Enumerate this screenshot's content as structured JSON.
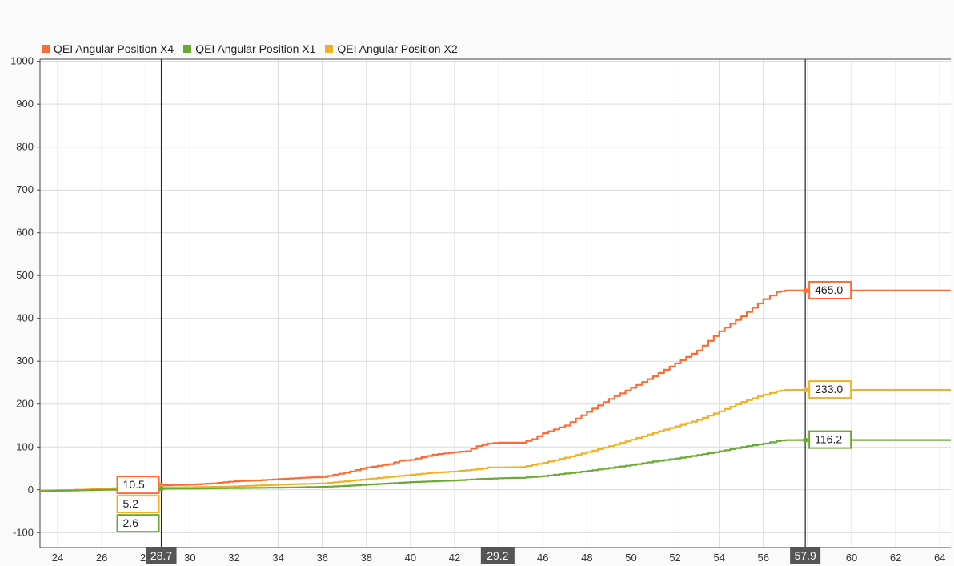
{
  "colors": {
    "x4": "#ff6a33",
    "x1": "#6aaa32",
    "x2": "#f2b125",
    "grid": "#d9d9d9",
    "cursor": "#222222",
    "cursor_label_bg": "#555555"
  },
  "legend": [
    {
      "name": "QEI Angular Position X4",
      "color": "#ff6a33"
    },
    {
      "name": "QEI Angular Position X1",
      "color": "#6aaa32"
    },
    {
      "name": "QEI Angular Position X2",
      "color": "#f2b125"
    }
  ],
  "cursors": [
    {
      "x": 28.7,
      "label": "28.7",
      "values": {
        "x4": "10.5",
        "x2": "5.2",
        "x1": "2.6"
      }
    },
    {
      "x": 57.9,
      "label": "57.9",
      "values": {
        "x4": "465.0",
        "x2": "233.0",
        "x1": "116.2"
      }
    }
  ],
  "delta_label": "29.2",
  "chart_data": {
    "type": "line",
    "xlim": [
      23.2,
      64.5
    ],
    "ylim": [
      -135,
      1005
    ],
    "x_ticks": [
      24,
      26,
      28,
      30,
      32,
      34,
      36,
      38,
      40,
      42,
      44,
      46,
      48,
      50,
      52,
      54,
      56,
      58,
      60,
      62,
      64
    ],
    "y_ticks": [
      -100,
      0,
      100,
      200,
      300,
      400,
      500,
      600,
      700,
      800,
      900,
      1000
    ],
    "grid": true,
    "legend_position": "top-left",
    "series": [
      {
        "name": "QEI Angular Position X4",
        "key": "x4",
        "color": "#ff6a33",
        "points": [
          [
            23.2,
            -2
          ],
          [
            25,
            0
          ],
          [
            26,
            2
          ],
          [
            27,
            5
          ],
          [
            28,
            8
          ],
          [
            28.7,
            10.5
          ],
          [
            30,
            12
          ],
          [
            31,
            15
          ],
          [
            32,
            20
          ],
          [
            33,
            22
          ],
          [
            34,
            25
          ],
          [
            35,
            28
          ],
          [
            36,
            30
          ],
          [
            37,
            40
          ],
          [
            38,
            52
          ],
          [
            39,
            60
          ],
          [
            39.5,
            68
          ],
          [
            40,
            70
          ],
          [
            41,
            82
          ],
          [
            42,
            88
          ],
          [
            42.5,
            90
          ],
          [
            43,
            102
          ],
          [
            43.5,
            108
          ],
          [
            44,
            110
          ],
          [
            45,
            110
          ],
          [
            45.5,
            118
          ],
          [
            46,
            132
          ],
          [
            47,
            150
          ],
          [
            48,
            182
          ],
          [
            49,
            212
          ],
          [
            50,
            238
          ],
          [
            51,
            265
          ],
          [
            52,
            295
          ],
          [
            53,
            325
          ],
          [
            54,
            370
          ],
          [
            55,
            405
          ],
          [
            56,
            445
          ],
          [
            56.6,
            462
          ],
          [
            57,
            465
          ],
          [
            57.9,
            465
          ],
          [
            64.5,
            465
          ]
        ]
      },
      {
        "name": "QEI Angular Position X2",
        "key": "x2",
        "color": "#f2b125",
        "points": [
          [
            23.2,
            -2
          ],
          [
            26,
            1
          ],
          [
            27,
            3
          ],
          [
            28,
            4
          ],
          [
            28.7,
            5.2
          ],
          [
            30,
            6
          ],
          [
            32,
            8
          ],
          [
            34,
            12
          ],
          [
            36,
            15
          ],
          [
            37,
            20
          ],
          [
            38,
            25
          ],
          [
            39,
            30
          ],
          [
            40,
            35
          ],
          [
            41,
            40
          ],
          [
            42,
            43
          ],
          [
            43,
            48
          ],
          [
            43.5,
            52
          ],
          [
            45,
            53
          ],
          [
            46,
            63
          ],
          [
            47,
            75
          ],
          [
            48,
            88
          ],
          [
            49,
            102
          ],
          [
            50,
            117
          ],
          [
            51,
            133
          ],
          [
            52,
            148
          ],
          [
            53,
            163
          ],
          [
            54,
            183
          ],
          [
            55,
            205
          ],
          [
            56,
            222
          ],
          [
            56.6,
            230
          ],
          [
            57,
            233
          ],
          [
            57.9,
            233
          ],
          [
            64.5,
            233
          ]
        ]
      },
      {
        "name": "QEI Angular Position X1",
        "key": "x1",
        "color": "#6aaa32",
        "points": [
          [
            23.2,
            -3
          ],
          [
            26,
            0
          ],
          [
            28,
            1
          ],
          [
            28.7,
            2.6
          ],
          [
            30,
            3
          ],
          [
            32,
            4
          ],
          [
            34,
            5
          ],
          [
            36,
            7
          ],
          [
            37,
            9
          ],
          [
            38,
            12
          ],
          [
            39,
            15
          ],
          [
            40,
            18
          ],
          [
            41,
            20
          ],
          [
            42,
            22
          ],
          [
            43,
            25
          ],
          [
            44,
            27
          ],
          [
            45,
            28
          ],
          [
            46,
            32
          ],
          [
            47,
            38
          ],
          [
            48,
            44
          ],
          [
            49,
            51
          ],
          [
            50,
            58
          ],
          [
            51,
            66
          ],
          [
            52,
            73
          ],
          [
            53,
            81
          ],
          [
            54,
            90
          ],
          [
            55,
            100
          ],
          [
            56,
            108
          ],
          [
            56.6,
            114
          ],
          [
            57,
            116
          ],
          [
            57.9,
            116.2
          ],
          [
            64.5,
            116.2
          ]
        ]
      }
    ]
  }
}
